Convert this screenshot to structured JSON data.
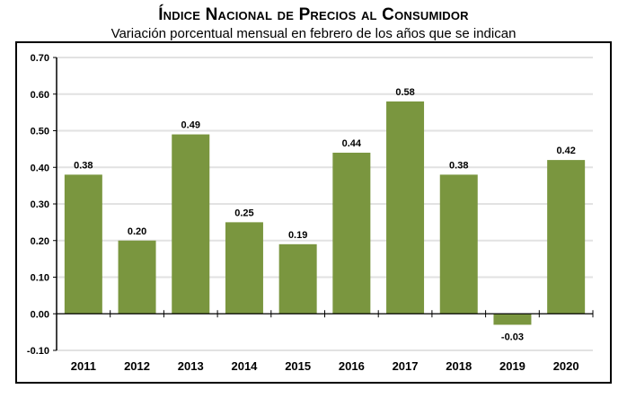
{
  "chart_data": {
    "type": "bar",
    "title": "Índice Nacional de Precios al Consumidor",
    "subtitle": "Variación porcentual mensual en febrero de los años que se indican",
    "categories": [
      "2011",
      "2012",
      "2013",
      "2014",
      "2015",
      "2016",
      "2017",
      "2018",
      "2019",
      "2020"
    ],
    "values": [
      0.38,
      0.2,
      0.49,
      0.25,
      0.19,
      0.44,
      0.58,
      0.38,
      -0.03,
      0.42
    ],
    "data_labels": [
      "0.38",
      "0.20",
      "0.49",
      "0.25",
      "0.19",
      "0.44",
      "0.58",
      "0.38",
      "-0.03",
      "0.42"
    ],
    "yticks": [
      "0.70",
      "0.60",
      "0.50",
      "0.40",
      "0.30",
      "0.20",
      "0.10",
      "0.00",
      "-0.10"
    ],
    "ylim": [
      -0.1,
      0.7
    ],
    "xlabel": "",
    "ylabel": "",
    "grid": true,
    "bar_color": "#7a963f"
  }
}
